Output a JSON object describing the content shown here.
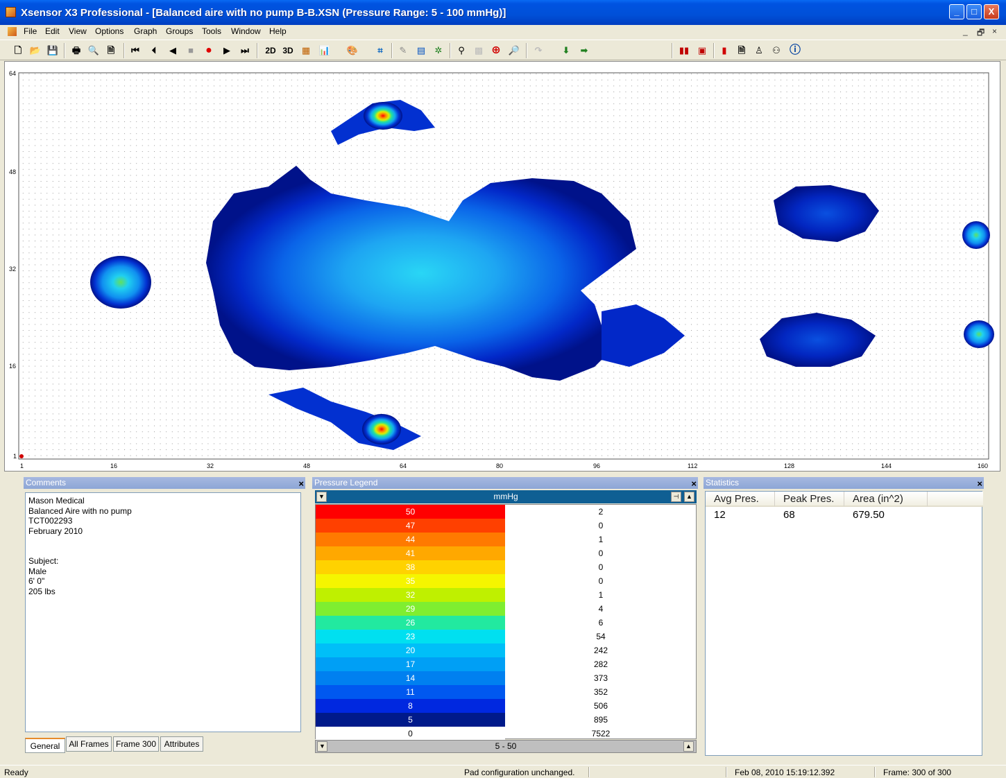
{
  "window": {
    "title": "Xsensor X3 Professional - [Balanced aire with no pump B-B.XSN  (Pressure Range: 5 - 100 mmHg)]",
    "minimize_label": "_",
    "maximize_label": "□",
    "close_label": "X"
  },
  "menu": {
    "items": [
      "File",
      "Edit",
      "View",
      "Options",
      "Graph",
      "Groups",
      "Tools",
      "Window",
      "Help"
    ],
    "mdi_min": "_",
    "mdi_restore": "🗗",
    "mdi_close": "×"
  },
  "toolbar": {
    "view_2d": "2D",
    "view_3d": "3D"
  },
  "plot": {
    "y_ticks": [
      "64",
      "48",
      "32",
      "16",
      "1"
    ],
    "x_ticks": [
      "1",
      "16",
      "32",
      "48",
      "64",
      "80",
      "96",
      "112",
      "128",
      "144",
      "160"
    ]
  },
  "comments": {
    "title": "Comments",
    "close": "×",
    "lines": [
      "Mason Medical",
      "Balanced Aire with no pump",
      "TCT002293",
      "February 2010",
      "",
      "",
      "Subject:",
      "Male",
      "6' 0\"",
      "205 lbs"
    ],
    "tabs": [
      "General",
      "All Frames",
      "Frame 300",
      "Attributes"
    ]
  },
  "legend": {
    "title": "Pressure Legend",
    "close": "×",
    "unit": "mmHg",
    "pin": "⊣",
    "scroll_up": "▲",
    "scroll_down": "▼",
    "range_label": "5 - 50",
    "rows": [
      {
        "value": "50",
        "count": "2",
        "color": "#ff0000"
      },
      {
        "value": "47",
        "count": "0",
        "color": "#ff4000"
      },
      {
        "value": "44",
        "count": "1",
        "color": "#ff7a00"
      },
      {
        "value": "41",
        "count": "0",
        "color": "#ffa800"
      },
      {
        "value": "38",
        "count": "0",
        "color": "#ffd200"
      },
      {
        "value": "35",
        "count": "0",
        "color": "#f5f500"
      },
      {
        "value": "32",
        "count": "1",
        "color": "#bff000"
      },
      {
        "value": "29",
        "count": "4",
        "color": "#7fee30"
      },
      {
        "value": "26",
        "count": "6",
        "color": "#22e9a0"
      },
      {
        "value": "23",
        "count": "54",
        "color": "#00e0f0"
      },
      {
        "value": "20",
        "count": "242",
        "color": "#00bff8"
      },
      {
        "value": "17",
        "count": "282",
        "color": "#009ff5"
      },
      {
        "value": "14",
        "count": "373",
        "color": "#0080f0"
      },
      {
        "value": "11",
        "count": "352",
        "color": "#0058f0"
      },
      {
        "value": "8",
        "count": "506",
        "color": "#0028e0"
      },
      {
        "value": "5",
        "count": "895",
        "color": "#001a8a"
      },
      {
        "value": "0",
        "count": "7522",
        "color": "#ffffff"
      }
    ]
  },
  "statistics": {
    "title": "Statistics",
    "close": "×",
    "columns": [
      "Avg Pres.",
      "Peak Pres.",
      "Area (in^2)"
    ],
    "values": [
      "12",
      "68",
      "679.50"
    ]
  },
  "status": {
    "ready": "Ready",
    "message": "Pad configuration unchanged.",
    "datetime": "Feb 08, 2010  15:19:12.392",
    "frame": "Frame: 300 of 300"
  }
}
